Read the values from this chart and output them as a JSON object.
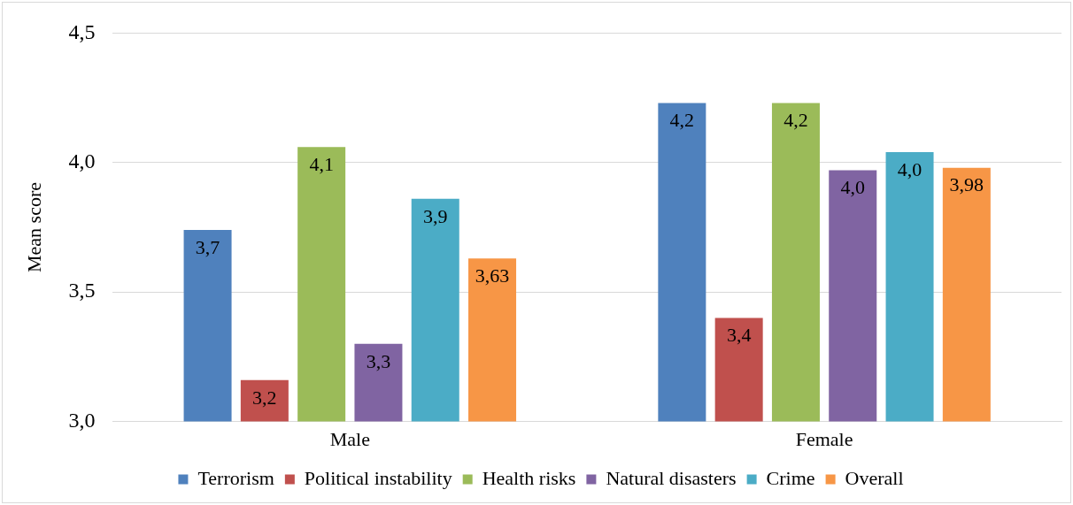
{
  "chart_data": {
    "type": "bar",
    "ylabel": "Mean score",
    "categories": [
      "Male",
      "Female"
    ],
    "series": [
      {
        "name": "Terrorism",
        "color": "#4f81bd",
        "values": [
          3.74,
          4.23
        ],
        "value_labels": [
          "3,7",
          "4,2"
        ]
      },
      {
        "name": "Political instability",
        "color": "#c0504d",
        "values": [
          3.16,
          3.4
        ],
        "value_labels": [
          "3,2",
          "3,4"
        ]
      },
      {
        "name": "Health risks",
        "color": "#9bbb59",
        "values": [
          4.06,
          4.23
        ],
        "value_labels": [
          "4,1",
          "4,2"
        ]
      },
      {
        "name": "Natural disasters",
        "color": "#8064a2",
        "values": [
          3.3,
          3.97
        ],
        "value_labels": [
          "3,3",
          "4,0"
        ]
      },
      {
        "name": "Crime",
        "color": "#4bacc6",
        "values": [
          3.86,
          4.04
        ],
        "value_labels": [
          "3,9",
          "4,0"
        ]
      },
      {
        "name": "Overall",
        "color": "#f79646",
        "values": [
          3.63,
          3.98
        ],
        "value_labels": [
          "3,63",
          "3,98"
        ]
      }
    ],
    "ylim": [
      3,
      4.5
    ],
    "yticks": [
      {
        "value": 3,
        "label": "3,0"
      },
      {
        "value": 3.5,
        "label": "3,5"
      },
      {
        "value": 4,
        "label": "4,0"
      },
      {
        "value": 4.5,
        "label": "4,5"
      }
    ],
    "grid": "y",
    "legend": "bottom"
  }
}
